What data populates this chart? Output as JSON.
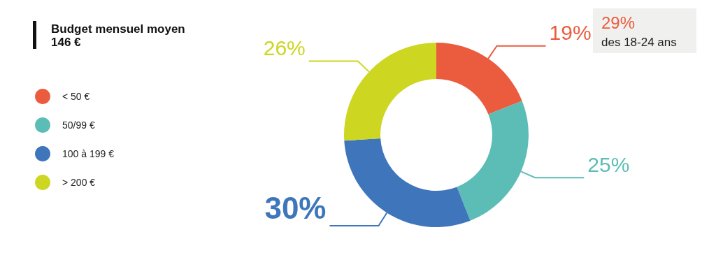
{
  "chart_data": {
    "type": "donut",
    "title": "Budget mensuel moyen",
    "subtitle": "146 €",
    "categories": [
      "< 50 €",
      "50/99 €",
      "100 à 199 €",
      "> 200 €"
    ],
    "values": [
      19,
      25,
      30,
      26
    ],
    "colors": [
      "#eb5c3f",
      "#5bbdb5",
      "#3f76bb",
      "#cdd620"
    ],
    "value_labels": [
      "19%",
      "25%",
      "30%",
      "26%"
    ],
    "legend": "left",
    "annotations": [
      "29%",
      "des 18-24 ans"
    ]
  }
}
